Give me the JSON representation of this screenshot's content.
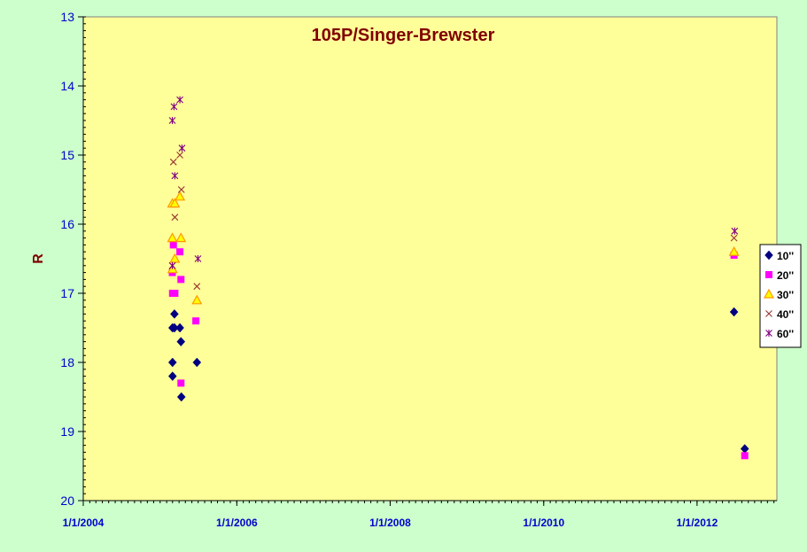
{
  "colors": {
    "page_bg": "#ccffcc",
    "plot_bg": "#ffff99",
    "title": "#800000",
    "ylabel": "#800000",
    "axis_ticks": "#0000cc"
  },
  "chart_data": {
    "type": "scatter",
    "title": "105P/Singer-Brewster",
    "xlabel": "",
    "ylabel": "R",
    "x_axis": {
      "type": "date",
      "range": [
        "2004-01-01",
        "2013-01-15"
      ],
      "ticks": [
        "2004-01-01",
        "2006-01-01",
        "2008-01-01",
        "2010-01-01",
        "2012-01-01"
      ],
      "tick_labels": [
        "1/1/2004",
        "1/1/2006",
        "1/1/2008",
        "1/1/2010",
        "1/1/2012"
      ]
    },
    "y_axis": {
      "range": [
        13,
        20
      ],
      "reversed": true,
      "ticks": [
        13,
        14,
        15,
        16,
        17,
        18,
        19,
        20
      ],
      "tick_labels": [
        "13",
        "14",
        "15",
        "16",
        "17",
        "18",
        "19",
        "20"
      ]
    },
    "grid": false,
    "legend": {
      "position": "right"
    },
    "series": [
      {
        "name": "10''",
        "marker": "diamond",
        "color": "#000080",
        "points": [
          {
            "x": "2005-03-01",
            "y": 17.5
          },
          {
            "x": "2005-03-10",
            "y": 17.3
          },
          {
            "x": "2005-03-01",
            "y": 18.0
          },
          {
            "x": "2005-03-01",
            "y": 18.2
          },
          {
            "x": "2005-03-10",
            "y": 17.5
          },
          {
            "x": "2005-04-05",
            "y": 17.5
          },
          {
            "x": "2005-04-10",
            "y": 17.7
          },
          {
            "x": "2005-04-12",
            "y": 18.5
          },
          {
            "x": "2005-06-25",
            "y": 18.0
          },
          {
            "x": "2012-06-25",
            "y": 17.27
          },
          {
            "x": "2012-08-15",
            "y": 19.25
          }
        ]
      },
      {
        "name": "20''",
        "marker": "square",
        "color": "#ff00ff",
        "points": [
          {
            "x": "2005-03-05",
            "y": 16.3
          },
          {
            "x": "2005-02-28",
            "y": 16.7
          },
          {
            "x": "2005-03-01",
            "y": 17.0
          },
          {
            "x": "2005-03-12",
            "y": 17.0
          },
          {
            "x": "2005-04-05",
            "y": 16.4
          },
          {
            "x": "2005-04-10",
            "y": 16.8
          },
          {
            "x": "2005-04-10",
            "y": 18.3
          },
          {
            "x": "2005-06-20",
            "y": 17.4
          },
          {
            "x": "2012-06-25",
            "y": 16.45
          },
          {
            "x": "2012-08-15",
            "y": 19.35
          }
        ]
      },
      {
        "name": "30''",
        "marker": "triangle",
        "color": "#ff9900",
        "points": [
          {
            "x": "2005-02-28",
            "y": 15.7
          },
          {
            "x": "2005-03-12",
            "y": 15.7
          },
          {
            "x": "2005-02-28",
            "y": 16.2
          },
          {
            "x": "2005-03-12",
            "y": 16.5
          },
          {
            "x": "2005-03-01",
            "y": 16.65
          },
          {
            "x": "2005-04-05",
            "y": 15.6
          },
          {
            "x": "2005-04-10",
            "y": 16.2
          },
          {
            "x": "2005-06-25",
            "y": 17.1
          },
          {
            "x": "2012-06-25",
            "y": 16.4
          }
        ]
      },
      {
        "name": "40''",
        "marker": "x",
        "color": "#993333",
        "points": [
          {
            "x": "2005-03-05",
            "y": 15.1
          },
          {
            "x": "2005-03-12",
            "y": 15.9
          },
          {
            "x": "2005-04-05",
            "y": 15.0
          },
          {
            "x": "2005-04-12",
            "y": 15.5
          },
          {
            "x": "2005-06-25",
            "y": 16.9
          },
          {
            "x": "2012-06-25",
            "y": 16.2
          }
        ]
      },
      {
        "name": "60''",
        "marker": "asterisk",
        "color": "#800080",
        "points": [
          {
            "x": "2005-02-28",
            "y": 14.5
          },
          {
            "x": "2005-03-08",
            "y": 14.3
          },
          {
            "x": "2005-04-05",
            "y": 14.2
          },
          {
            "x": "2005-04-15",
            "y": 14.9
          },
          {
            "x": "2005-03-12",
            "y": 15.3
          },
          {
            "x": "2005-02-28",
            "y": 16.6
          },
          {
            "x": "2005-06-30",
            "y": 16.5
          },
          {
            "x": "2012-06-28",
            "y": 16.1
          }
        ]
      }
    ]
  }
}
